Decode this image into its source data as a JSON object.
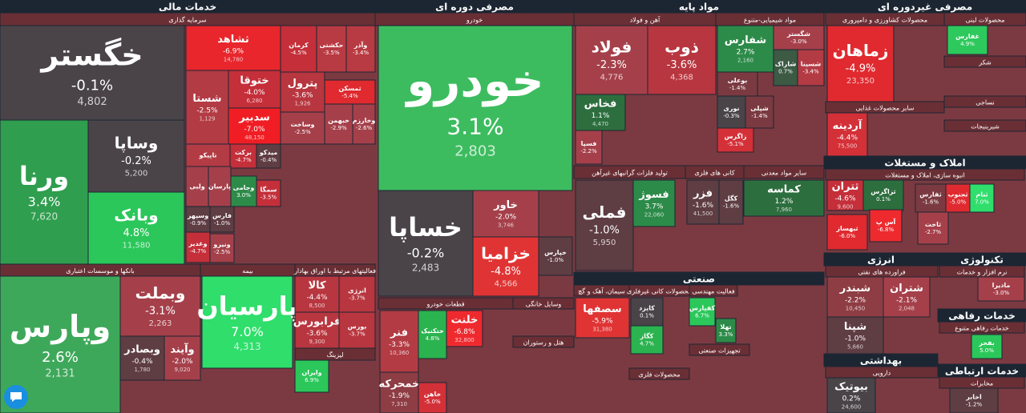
{
  "sectors": [
    {
      "title": "خدمات مالی"
    },
    {
      "title": "سرمایه گذاری"
    },
    {
      "title": "بانکها و موسسات اعتباری"
    },
    {
      "title": "بیمه"
    },
    {
      "title": "فعالیتهای مرتبط با اوراق بهادار"
    },
    {
      "title": "لیزینگ"
    },
    {
      "title": "مصرفی دوره ای"
    },
    {
      "title": "خودرو"
    },
    {
      "title": "قطعات خودرو"
    },
    {
      "title": "وسایل خانگی"
    },
    {
      "title": "هتل و رستوران"
    },
    {
      "title": "مواد پایه"
    },
    {
      "title": "آهن و فولاد"
    },
    {
      "title": "مواد شیمیایی-متنوع"
    },
    {
      "title": "تولید فلزات گرانبهای غیرآهن"
    },
    {
      "title": "کانی های فلزی"
    },
    {
      "title": "سایر مواد معدنی"
    },
    {
      "title": "صنعتی"
    },
    {
      "title": "سیمان، آهک و گچ"
    },
    {
      "title": "محصولات کانی غیرفلزی"
    },
    {
      "title": "فعالیت مهندسی"
    },
    {
      "title": "تجهیزات صنعتی"
    },
    {
      "title": "محصولات فلزی"
    },
    {
      "title": "مصرفی غیردوره ای"
    },
    {
      "title": "محصولات کشاورزی و دامپروری"
    },
    {
      "title": "محصولات لبنی"
    },
    {
      "title": "شکر"
    },
    {
      "title": "سایر محصولات غذایی"
    },
    {
      "title": "نساجی"
    },
    {
      "title": "شیرینیجات"
    },
    {
      "title": "املاک و مستغلات"
    },
    {
      "title": "انبوه سازی، املاک و مستغلات"
    },
    {
      "title": "انرژی"
    },
    {
      "title": "فراورده های نفتی"
    },
    {
      "title": "تکنولوژی"
    },
    {
      "title": "نرم افزار و خدمات"
    },
    {
      "title": "خدمات رفاهی"
    },
    {
      "title": "خدمات رفاهی متنوع"
    },
    {
      "title": "بهداشتی"
    },
    {
      "title": "دارویی"
    },
    {
      "title": "خدمات ارتباطی"
    },
    {
      "title": "مخابرات"
    }
  ],
  "tiles": [
    {
      "name": "خگستر",
      "change": "-0.1%",
      "price": "4,802"
    },
    {
      "name": "ورنا",
      "change": "3.4%",
      "price": "7,620"
    },
    {
      "name": "وساپا",
      "change": "-0.2%",
      "price": "5,200"
    },
    {
      "name": "وبانک",
      "change": "4.8%",
      "price": "11,580"
    },
    {
      "name": "ثشاهد",
      "change": "-6.9%",
      "price": "14,780"
    },
    {
      "name": "کرمان",
      "change": "-4.5%",
      "price": "1,516"
    },
    {
      "name": "حکشتی",
      "change": "-3.5%"
    },
    {
      "name": "وآذر",
      "change": "-3.4%"
    },
    {
      "name": "شستا",
      "change": "-2.5%",
      "price": "1,129"
    },
    {
      "name": "ختوقا",
      "change": "-4.0%",
      "price": "6,280"
    },
    {
      "name": "سدبیر",
      "change": "-7.0%",
      "price": "48,150"
    },
    {
      "name": "پترول",
      "change": "-3.6%",
      "price": "1,926"
    },
    {
      "name": "ثمسکن",
      "change": "-5.4%"
    },
    {
      "name": "وساخت",
      "change": "-2.5%"
    },
    {
      "name": "خبهمن",
      "change": "-2.9%"
    },
    {
      "name": "وخارزم",
      "change": "-2.6%"
    },
    {
      "name": "تاپیکو"
    },
    {
      "name": "برکت",
      "change": "-4.7%"
    },
    {
      "name": "میدکو",
      "change": "-0.4%"
    },
    {
      "name": "ولبی"
    },
    {
      "name": "پارسان"
    },
    {
      "name": "وجامی",
      "change": "3.0%"
    },
    {
      "name": "سمگا",
      "change": "-3.5%"
    },
    {
      "name": "فارس",
      "change": "-1.0%"
    },
    {
      "name": "وسپهر",
      "change": "-0.9%"
    },
    {
      "name": "وغدیر",
      "change": "-4.7%"
    },
    {
      "name": "ونیرو",
      "change": "-2.5%"
    },
    {
      "name": "وپارس",
      "change": "2.6%",
      "price": "2,131"
    },
    {
      "name": "وبملت",
      "change": "-3.1%",
      "price": "2,263"
    },
    {
      "name": "وبصادر",
      "change": "-0.4%",
      "price": "1,780"
    },
    {
      "name": "وآیند",
      "change": "-2.0%",
      "price": "9,020"
    },
    {
      "name": "پارسیان",
      "change": "7.0%",
      "price": "4,313"
    },
    {
      "name": "کالا",
      "change": "-4.4%",
      "price": "8,500"
    },
    {
      "name": "انرژی",
      "change": "-3.7%",
      "price": "34,000"
    },
    {
      "name": "فرابورس",
      "change": "-3.6%",
      "price": "9,300"
    },
    {
      "name": "بورس",
      "change": "-3.7%"
    },
    {
      "name": "وایران",
      "change": "6.9%"
    },
    {
      "name": "خودرو",
      "change": "3.1%",
      "price": "2,803"
    },
    {
      "name": "خساپا",
      "change": "-0.2%",
      "price": "2,483"
    },
    {
      "name": "خاور",
      "change": "-2.0%",
      "price": "3,746"
    },
    {
      "name": "خزامیا",
      "change": "-4.8%",
      "price": "4,566"
    },
    {
      "name": "خپارس",
      "change": "-1.0%"
    },
    {
      "name": "فنر",
      "change": "-3.3%",
      "price": "10,360"
    },
    {
      "name": "ختکنیک",
      "change": "4.8%"
    },
    {
      "name": "خلنت",
      "change": "-6.8%",
      "price": "32,800"
    },
    {
      "name": "خمحرکه",
      "change": "-1.9%",
      "price": "7,310"
    },
    {
      "name": "خاهن",
      "change": "-5.0%"
    },
    {
      "name": "فولاد",
      "change": "-2.3%",
      "price": "4,776"
    },
    {
      "name": "ذوب",
      "change": "-3.6%",
      "price": "4,368"
    },
    {
      "name": "فخاس",
      "change": "1.1%",
      "price": "4,470"
    },
    {
      "name": "فسپا",
      "change": "-2.2%"
    },
    {
      "name": "شفارس",
      "change": "2.7%",
      "price": "2,160"
    },
    {
      "name": "شگستر",
      "change": "-3.0%"
    },
    {
      "name": "شسینا",
      "change": "-3.4%"
    },
    {
      "name": "شاراک",
      "change": "0.7%"
    },
    {
      "name": "بوعلی",
      "change": "-1.4%"
    },
    {
      "name": "نوری",
      "change": "-0.3%"
    },
    {
      "name": "شپلی",
      "change": "-1.4%"
    },
    {
      "name": "زاگرس",
      "change": "-5.1%"
    },
    {
      "name": "فملی",
      "change": "-1.0%",
      "price": "5,950"
    },
    {
      "name": "فسوژ",
      "change": "3.7%",
      "price": "22,060"
    },
    {
      "name": "فزر",
      "change": "-1.6%",
      "price": "41,500"
    },
    {
      "name": "کگل",
      "change": "-1.6%"
    },
    {
      "name": "کماسه",
      "change": "1.2%",
      "price": "7,960"
    },
    {
      "name": "سصفها",
      "change": "-5.9%",
      "price": "31,380"
    },
    {
      "name": "کایزد",
      "change": "0.1%"
    },
    {
      "name": "کگاز",
      "change": "4.7%"
    },
    {
      "name": "کفپارس",
      "change": "6.7%"
    },
    {
      "name": "تهلا",
      "change": "3.3%"
    },
    {
      "name": "زماهان",
      "change": "-4.9%",
      "price": "23,350"
    },
    {
      "name": "غفارس",
      "change": "4.9%"
    },
    {
      "name": "آردینه",
      "change": "-4.4%",
      "price": "75,500"
    },
    {
      "name": "ثتران",
      "change": "-4.6%",
      "price": "9,600"
    },
    {
      "name": "ثزاگرس",
      "change": "0.1%"
    },
    {
      "name": "ثفارس",
      "change": "-1.6%"
    },
    {
      "name": "ثجنوب",
      "change": "-5.0%"
    },
    {
      "name": "ثنام",
      "change": "7.0%"
    },
    {
      "name": "آس پ",
      "change": "-6.8%"
    },
    {
      "name": "ثبهساز",
      "change": "-6.0%"
    },
    {
      "name": "ثاخت",
      "change": "-2.7%"
    },
    {
      "name": "شبندر",
      "change": "-2.2%",
      "price": "10,450"
    },
    {
      "name": "شتران",
      "change": "-2.1%",
      "price": "2,048"
    },
    {
      "name": "شپنا",
      "change": "-1.0%",
      "price": "5,660"
    },
    {
      "name": "مادیرا",
      "change": "-3.0%"
    },
    {
      "name": "بفجر",
      "change": "5.0%"
    },
    {
      "name": "بیوتیک",
      "change": "0.2%",
      "price": "24,600"
    },
    {
      "name": "اخابر",
      "change": "-1.2%"
    }
  ]
}
